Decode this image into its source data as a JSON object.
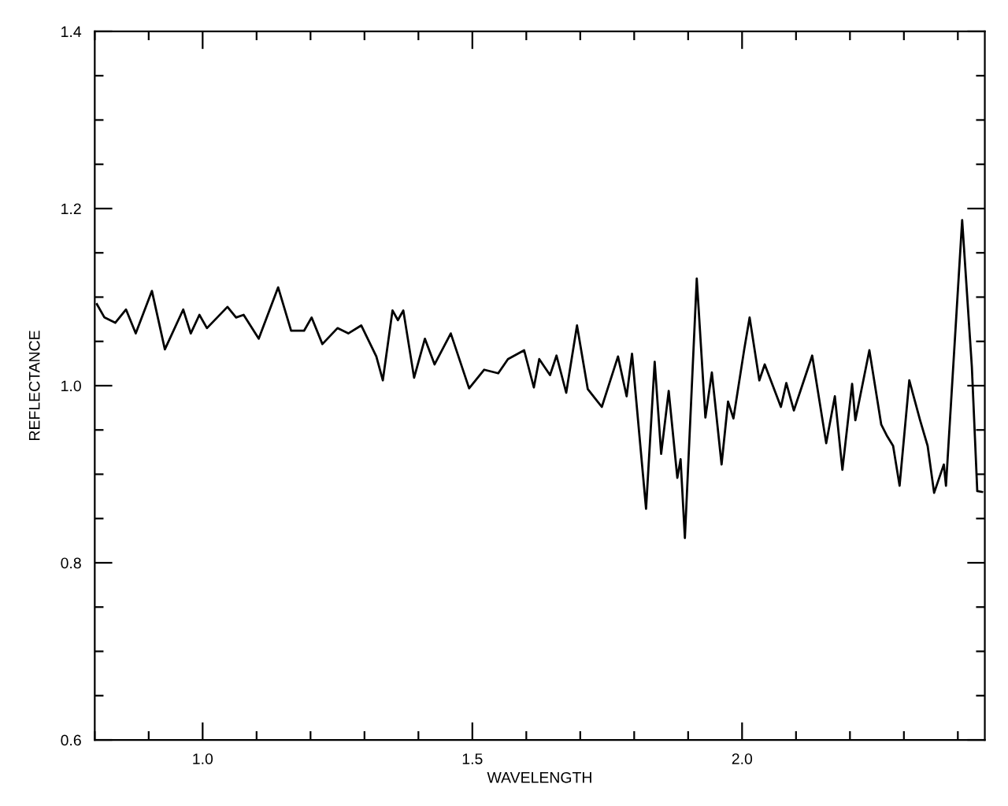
{
  "chart_data": {
    "type": "line",
    "xlabel": "WAVELENGTH",
    "ylabel": "REFLECTANCE",
    "x": [
      0.804,
      0.818,
      0.838,
      0.858,
      0.876,
      0.906,
      0.93,
      0.964,
      0.978,
      0.994,
      1.008,
      1.046,
      1.062,
      1.076,
      1.104,
      1.14,
      1.164,
      1.188,
      1.202,
      1.222,
      1.25,
      1.27,
      1.294,
      1.322,
      1.334,
      1.352,
      1.362,
      1.372,
      1.392,
      1.412,
      1.43,
      1.46,
      1.494,
      1.522,
      1.548,
      1.566,
      1.596,
      1.614,
      1.624,
      1.644,
      1.656,
      1.674,
      1.694,
      1.714,
      1.74,
      1.77,
      1.786,
      1.796,
      1.822,
      1.838,
      1.85,
      1.864,
      1.88,
      1.886,
      1.894,
      1.916,
      1.932,
      1.944,
      1.962,
      1.974,
      1.984,
      2.004,
      2.014,
      2.032,
      2.042,
      2.072,
      2.082,
      2.096,
      2.13,
      2.156,
      2.172,
      2.186,
      2.204,
      2.21,
      2.236,
      2.258,
      2.268,
      2.28,
      2.292,
      2.31,
      2.33,
      2.344,
      2.356,
      2.374,
      2.378,
      2.408,
      2.426,
      2.436,
      2.445
    ],
    "series": [
      {
        "color": "#000000",
        "values": [
          1.092,
          1.077,
          1.071,
          1.086,
          1.059,
          1.107,
          1.041,
          1.086,
          1.059,
          1.08,
          1.065,
          1.089,
          1.077,
          1.08,
          1.053,
          1.111,
          1.062,
          1.062,
          1.077,
          1.047,
          1.065,
          1.059,
          1.068,
          1.033,
          1.006,
          1.085,
          1.074,
          1.085,
          1.009,
          1.053,
          1.024,
          1.059,
          0.997,
          1.018,
          1.014,
          1.03,
          1.04,
          0.998,
          1.03,
          1.012,
          1.034,
          0.992,
          1.068,
          0.996,
          0.976,
          1.033,
          0.988,
          1.036,
          0.861,
          1.027,
          0.923,
          0.994,
          0.896,
          0.917,
          0.828,
          1.121,
          0.964,
          1.015,
          0.911,
          0.982,
          0.963,
          1.041,
          1.077,
          1.006,
          1.024,
          0.976,
          1.003,
          0.972,
          1.034,
          0.935,
          0.988,
          0.905,
          1.002,
          0.961,
          1.04,
          0.956,
          0.944,
          0.932,
          0.887,
          1.006,
          0.961,
          0.932,
          0.879,
          0.911,
          0.887,
          1.187,
          1.021,
          0.881,
          0.88
        ]
      }
    ],
    "xlim": [
      0.8,
      2.45
    ],
    "ylim": [
      0.6,
      1.4
    ],
    "xticks": [
      {
        "value": 0.8,
        "label": null
      },
      {
        "value": 0.9,
        "label": null
      },
      "1.0",
      {
        "value": 1.1,
        "label": null
      },
      {
        "value": 1.2,
        "label": null
      },
      {
        "value": 1.3,
        "label": null
      },
      {
        "value": 1.4,
        "label": null
      },
      {
        "value": 1.5,
        "label": "1.5"
      },
      {
        "value": 1.6,
        "label": null
      },
      {
        "value": 1.7,
        "label": null
      },
      {
        "value": 1.8,
        "label": null
      },
      {
        "value": 1.9,
        "label": null
      },
      {
        "value": 2.0,
        "label": "2.0"
      },
      {
        "value": 2.1,
        "label": null
      },
      {
        "value": 2.2,
        "label": null
      },
      {
        "value": 2.3,
        "label": null
      },
      {
        "value": 2.4,
        "label": null
      }
    ],
    "yticks": [
      {
        "value": 0.6,
        "label": "0.6"
      },
      {
        "value": 0.65,
        "label": null
      },
      {
        "value": 0.7,
        "label": null
      },
      {
        "value": 0.75,
        "label": null
      },
      {
        "value": 0.8,
        "label": "0.8"
      },
      {
        "value": 0.85,
        "label": null
      },
      {
        "value": 0.9,
        "label": null
      },
      {
        "value": 0.95,
        "label": null
      },
      {
        "value": 1.0,
        "label": "1.0"
      },
      {
        "value": 1.05,
        "label": null
      },
      {
        "value": 1.1,
        "label": null
      },
      {
        "value": 1.15,
        "label": null
      },
      {
        "value": 1.2,
        "label": "1.2"
      },
      {
        "value": 1.25,
        "label": null
      },
      {
        "value": 1.3,
        "label": null
      },
      {
        "value": 1.35,
        "label": null
      },
      {
        "value": 1.4,
        "label": "1.4"
      }
    ],
    "marker": "none",
    "line_style": "solid"
  }
}
